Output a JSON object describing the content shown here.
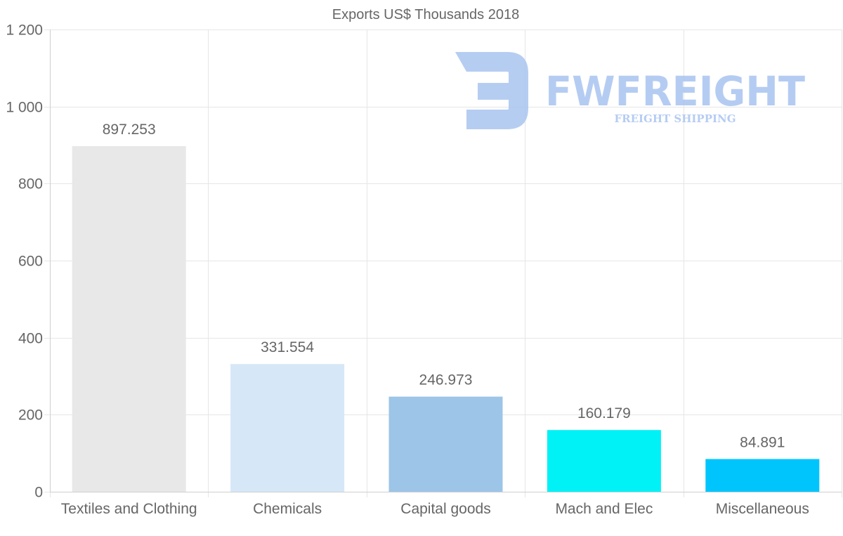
{
  "chart_data": {
    "type": "bar",
    "title": "Exports US$ Thousands 2018",
    "xlabel": "",
    "ylabel": "",
    "categories": [
      "Textiles and Clothing",
      "Chemicals",
      "Capital goods",
      "Mach and Elec",
      "Miscellaneous"
    ],
    "values": [
      897.253,
      331.554,
      246.973,
      160.179,
      84.891
    ],
    "value_labels": [
      "897.253",
      "331.554",
      "246.973",
      "160.179",
      "84.891"
    ],
    "colors": [
      "#e8e8e8",
      "#d6e7f8",
      "#9dc5e7",
      "#00f2f6",
      "#00c5fd"
    ],
    "ylim": [
      0,
      1200
    ],
    "yticks": [
      0,
      200,
      400,
      600,
      800,
      1000,
      1200
    ],
    "ytick_labels": [
      "0",
      "200",
      "400",
      "600",
      "800",
      "1 000",
      "1 200"
    ],
    "grid": true,
    "legend": "none"
  },
  "watermark": {
    "brand": "FWFREIGHT",
    "tagline": "FREIGHT SHIPPING",
    "color": "#a9c4f0"
  }
}
